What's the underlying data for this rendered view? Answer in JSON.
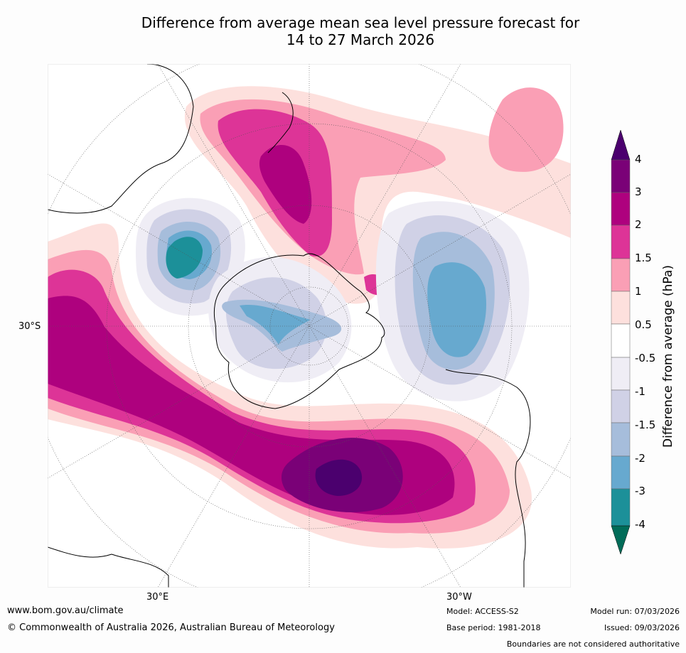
{
  "title": {
    "line1": "Difference from average mean sea level pressure forecast for",
    "line2": "14 to 27 March 2026"
  },
  "map": {
    "projection": "south-polar-stereographic",
    "axis_labels": {
      "lat": "30°S",
      "lon_east": "30°E",
      "lon_west": "30°W"
    },
    "anomalies": [
      {
        "region": "south of Africa / southern Indian Ocean",
        "sign": "positive",
        "peak_hpa": 4
      },
      {
        "region": "Tasman Sea / New Zealand",
        "sign": "positive",
        "peak_hpa": 3
      },
      {
        "region": "South Pacific / Amundsen Sea",
        "sign": "negative",
        "peak_hpa": -3
      },
      {
        "region": "Southern Indian Ocean off Australia",
        "sign": "negative",
        "peak_hpa": -4
      },
      {
        "region": "East Antarctica interior",
        "sign": "negative",
        "peak_hpa": -3
      }
    ]
  },
  "colorbar": {
    "title": "Difference from average (hPa)",
    "ticks": [
      "4",
      "3",
      "2",
      "1.5",
      "1",
      "0.5",
      "-0.5",
      "-1",
      "-1.5",
      "-2",
      "-3",
      "-4"
    ],
    "colors": {
      "gt4": "#4b006e",
      "3_4": "#7a0177",
      "2_3": "#ae017e",
      "1_5_2": "#dd3497",
      "1_1_5": "#fa9fb5",
      "0_5_1": "#fde0dd",
      "m0_5_0_5": "#ffffff",
      "m1_m0_5": "#efedf5",
      "m1_5_m1": "#d0d1e6",
      "m2_m1_5": "#a6bddb",
      "m3_m2": "#67a9cf",
      "m4_m3": "#1c9099",
      "lt_m4": "#016c59"
    }
  },
  "footer": {
    "url": "www.bom.gov.au/climate",
    "copyright": "© Commonwealth of Australia 2026, Australian Bureau of Meteorology",
    "model": "Model: ACCESS-S2",
    "model_run": "Model run: 07/03/2026",
    "base_period": "Base period: 1981-2018",
    "issued": "Issued: 09/03/2026",
    "disclaimer": "Boundaries are not considered authoritative"
  }
}
